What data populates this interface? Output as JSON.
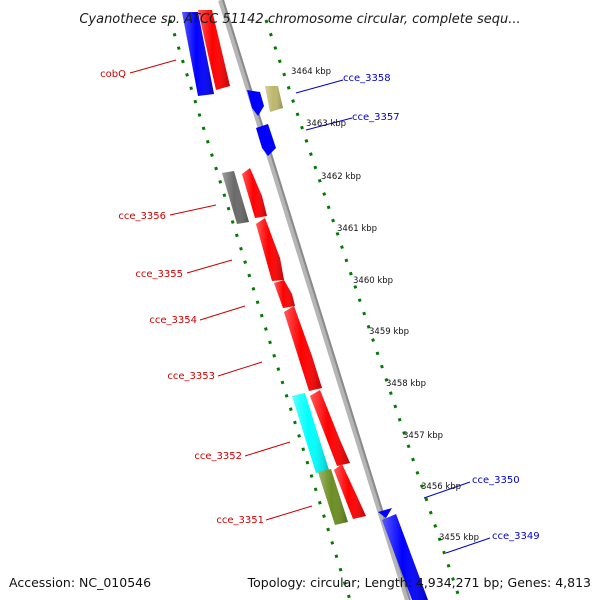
{
  "header": {
    "title": "Cyanothece sp. ATCC 51142 chromosome circular, complete sequ..."
  },
  "footer": {
    "accession": "Accession: NC_010546",
    "topology": "Topology: circular; Length: 4,934,271 bp; Genes: 4,813"
  },
  "kbp_ticks": [
    "3464 kbp",
    "3463 kbp",
    "3462 kbp",
    "3461 kbp",
    "3460 kbp",
    "3459 kbp",
    "3458 kbp",
    "3457 kbp",
    "3456 kbp",
    "3455 kbp"
  ],
  "gene_labels_left": [
    "cobQ",
    "cce_3356",
    "cce_3355",
    "cce_3354",
    "cce_3353",
    "cce_3352",
    "cce_3351"
  ],
  "gene_labels_right": [
    "cce_3358",
    "cce_3357",
    "cce_3350",
    "cce_3349"
  ],
  "colors": {
    "backbone": "#999999",
    "tick": "#007a00",
    "label_left": "#cc0000",
    "label_right": "#0000cc",
    "gene_red": "#ff0000",
    "gene_blue": "#0000ff",
    "gene_khaki": "#bdb76b",
    "gene_gray": "#696969",
    "gene_cyan": "#00ffff",
    "gene_olive": "#6b8e23"
  }
}
